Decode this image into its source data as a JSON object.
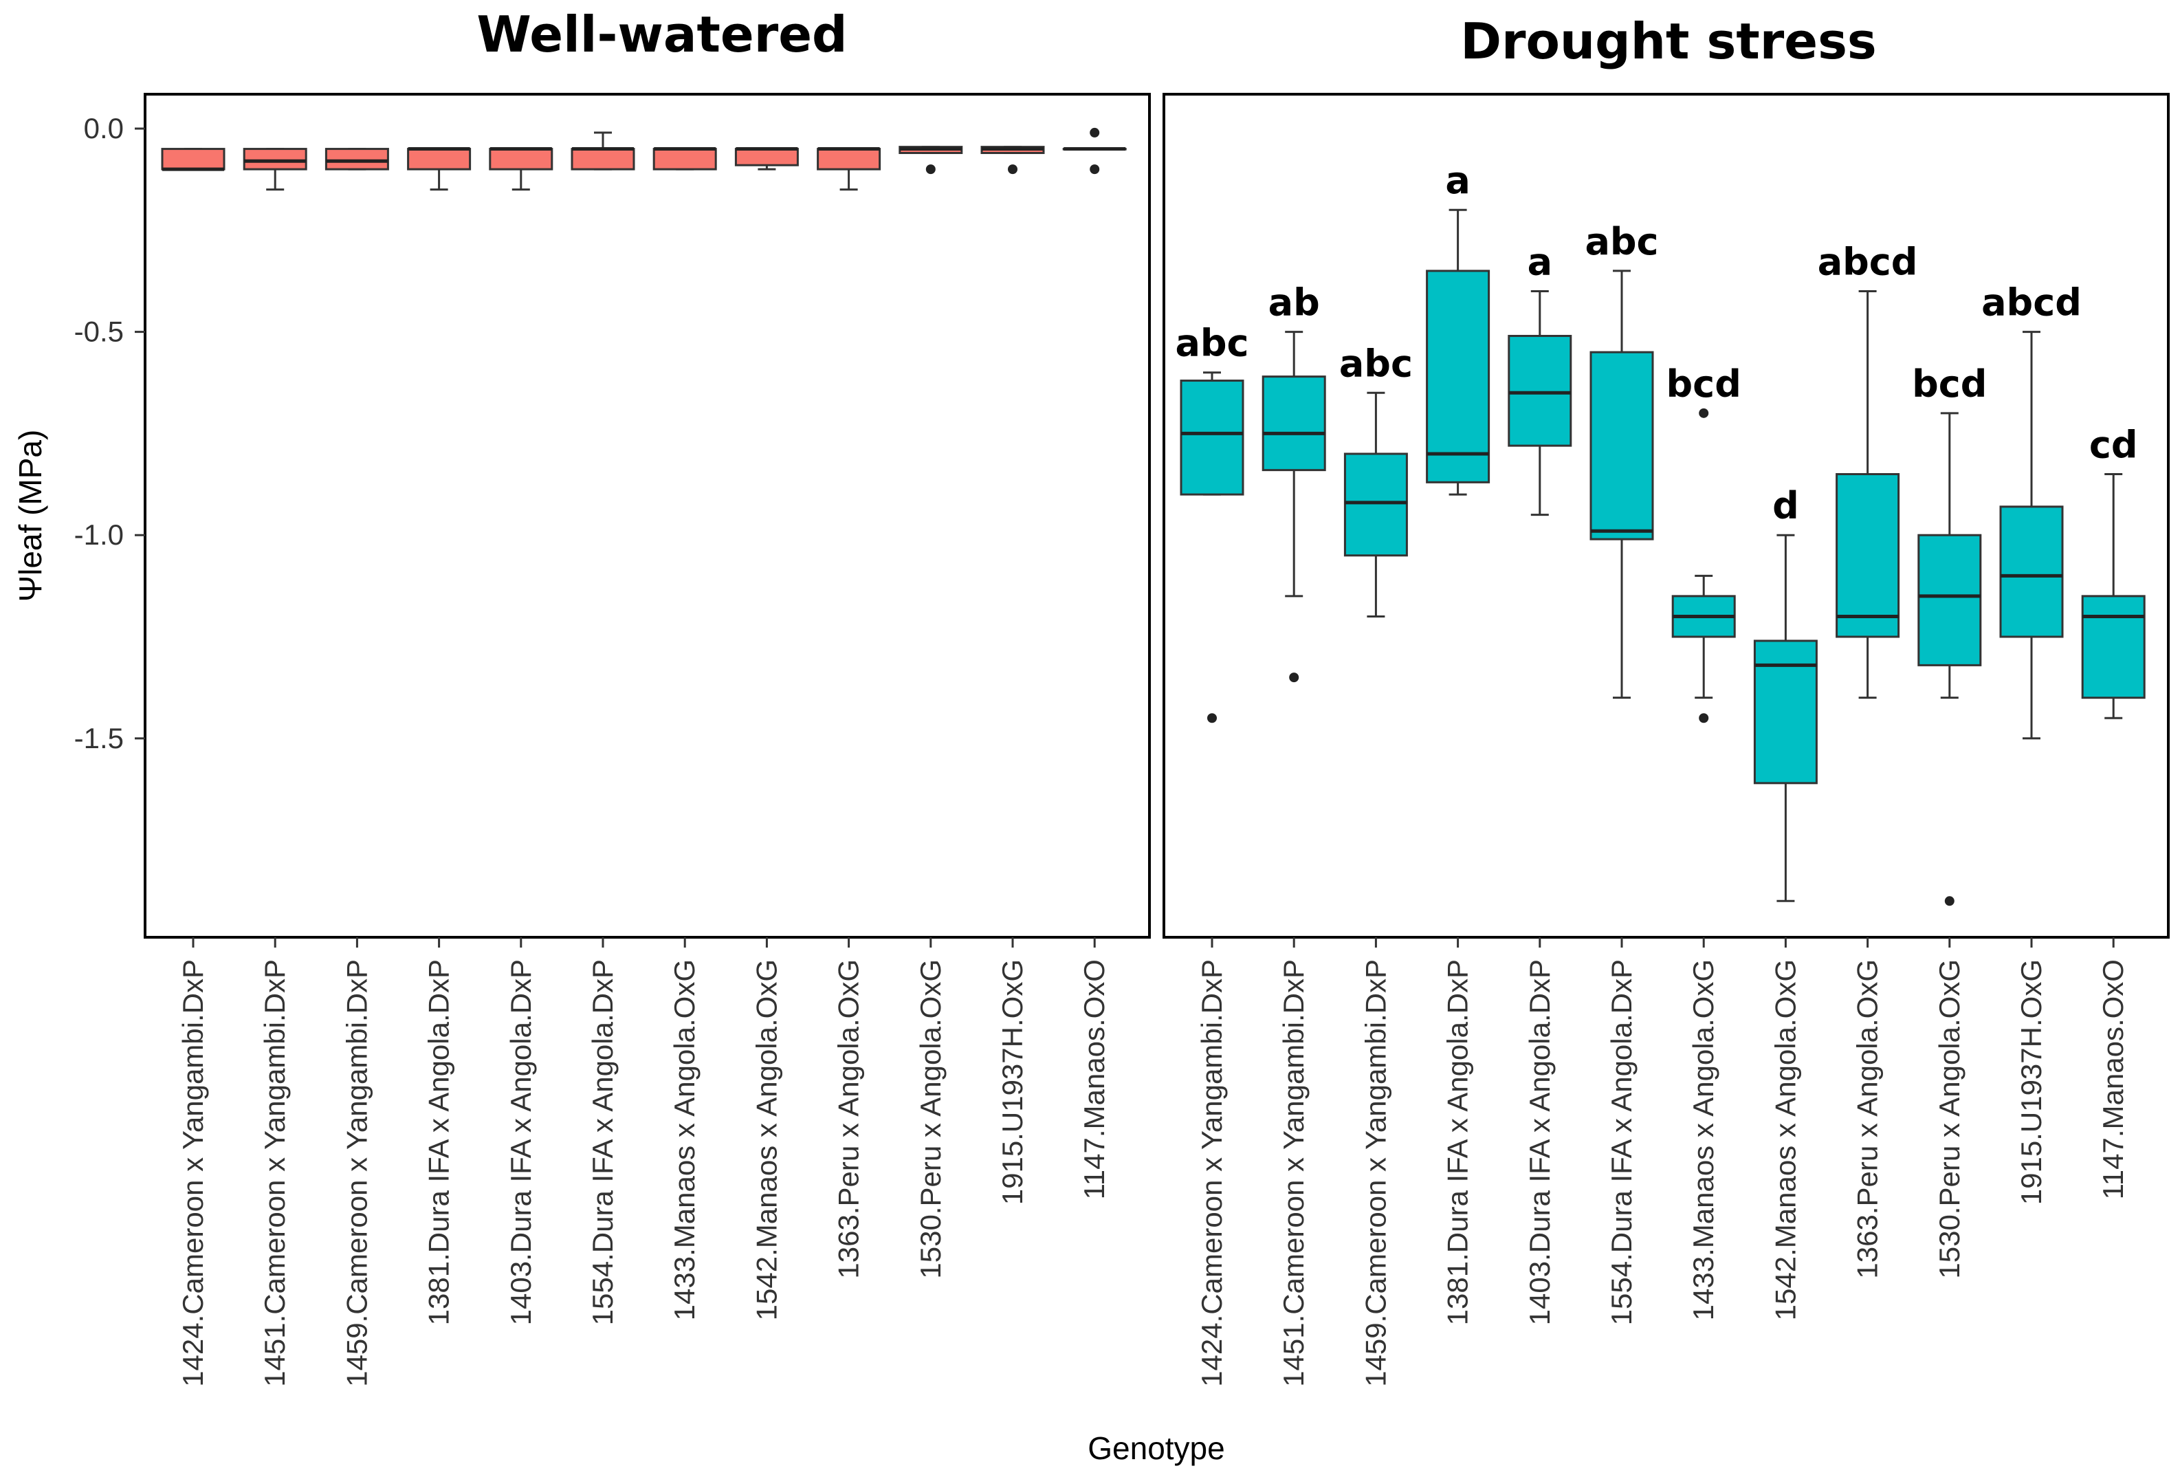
{
  "chart_data": {
    "type": "box",
    "xlabel": "Genotype",
    "ylabel": "Ψleaf (MPa)",
    "ylim": [
      -2.0,
      0.08
    ],
    "yticks": [
      0.0,
      -0.5,
      -1.0,
      -1.5
    ],
    "ytick_labels": [
      "0.0",
      "-0.5",
      "-1.0",
      "-1.5"
    ],
    "categories": [
      "1424.Cameroon x Yangambi.DxP",
      "1451.Cameroon x Yangambi.DxP",
      "1459.Cameroon x Yangambi.DxP",
      "1381.Dura IFA x Angola.DxP",
      "1403.Dura IFA x Angola.DxP",
      "1554.Dura IFA x Angola.DxP",
      "1433.Manaos x Angola.OxG",
      "1542.Manaos x Angola.OxG",
      "1363.Peru x Angola.OxG",
      "1530.Peru x Angola.OxG",
      "1915.U1937H.OxG",
      "1147.Manaos.OxO"
    ],
    "panels": [
      {
        "title": "Well-watered",
        "fill_color": "#f8766d",
        "boxes": [
          {
            "q1": -0.1,
            "median": -0.1,
            "q3": -0.05,
            "whisker_low": -0.1,
            "whisker_high": -0.05,
            "outliers": []
          },
          {
            "q1": -0.1,
            "median": -0.08,
            "q3": -0.05,
            "whisker_low": -0.15,
            "whisker_high": -0.05,
            "outliers": []
          },
          {
            "q1": -0.1,
            "median": -0.08,
            "q3": -0.05,
            "whisker_low": -0.1,
            "whisker_high": -0.05,
            "outliers": []
          },
          {
            "q1": -0.1,
            "median": -0.05,
            "q3": -0.05,
            "whisker_low": -0.15,
            "whisker_high": -0.05,
            "outliers": []
          },
          {
            "q1": -0.1,
            "median": -0.05,
            "q3": -0.05,
            "whisker_low": -0.15,
            "whisker_high": -0.05,
            "outliers": []
          },
          {
            "q1": -0.1,
            "median": -0.05,
            "q3": -0.05,
            "whisker_low": -0.1,
            "whisker_high": -0.01,
            "outliers": []
          },
          {
            "q1": -0.1,
            "median": -0.05,
            "q3": -0.05,
            "whisker_low": -0.1,
            "whisker_high": -0.05,
            "outliers": []
          },
          {
            "q1": -0.09,
            "median": -0.05,
            "q3": -0.05,
            "whisker_low": -0.1,
            "whisker_high": -0.05,
            "outliers": []
          },
          {
            "q1": -0.1,
            "median": -0.05,
            "q3": -0.05,
            "whisker_low": -0.15,
            "whisker_high": -0.05,
            "outliers": []
          },
          {
            "q1": -0.06,
            "median": -0.05,
            "q3": -0.045,
            "whisker_low": -0.06,
            "whisker_high": -0.045,
            "outliers": [
              -0.1
            ]
          },
          {
            "q1": -0.06,
            "median": -0.05,
            "q3": -0.045,
            "whisker_low": -0.06,
            "whisker_high": -0.045,
            "outliers": [
              -0.1
            ]
          },
          {
            "q1": -0.05,
            "median": -0.05,
            "q3": -0.05,
            "whisker_low": -0.05,
            "whisker_high": -0.05,
            "outliers": [
              -0.01,
              -0.1
            ]
          }
        ],
        "letters": []
      },
      {
        "title": "Drought stress",
        "fill_color": "#00bfc4",
        "boxes": [
          {
            "q1": -0.9,
            "median": -0.75,
            "q3": -0.62,
            "whisker_low": -0.9,
            "whisker_high": -0.6,
            "outliers": [
              -1.45
            ]
          },
          {
            "q1": -0.84,
            "median": -0.75,
            "q3": -0.61,
            "whisker_low": -1.15,
            "whisker_high": -0.5,
            "outliers": [
              -1.35
            ]
          },
          {
            "q1": -1.05,
            "median": -0.92,
            "q3": -0.8,
            "whisker_low": -1.2,
            "whisker_high": -0.65,
            "outliers": []
          },
          {
            "q1": -0.87,
            "median": -0.8,
            "q3": -0.35,
            "whisker_low": -0.9,
            "whisker_high": -0.2,
            "outliers": []
          },
          {
            "q1": -0.78,
            "median": -0.65,
            "q3": -0.51,
            "whisker_low": -0.95,
            "whisker_high": -0.4,
            "outliers": []
          },
          {
            "q1": -1.01,
            "median": -0.99,
            "q3": -0.55,
            "whisker_low": -1.4,
            "whisker_high": -0.35,
            "outliers": []
          },
          {
            "q1": -1.25,
            "median": -1.2,
            "q3": -1.15,
            "whisker_low": -1.4,
            "whisker_high": -1.1,
            "outliers": [
              -0.7,
              -1.45
            ]
          },
          {
            "q1": -1.61,
            "median": -1.32,
            "q3": -1.26,
            "whisker_low": -1.9,
            "whisker_high": -1.0,
            "outliers": []
          },
          {
            "q1": -1.25,
            "median": -1.2,
            "q3": -0.85,
            "whisker_low": -1.4,
            "whisker_high": -0.4,
            "outliers": []
          },
          {
            "q1": -1.32,
            "median": -1.15,
            "q3": -1.0,
            "whisker_low": -1.4,
            "whisker_high": -0.7,
            "outliers": [
              -1.9
            ]
          },
          {
            "q1": -1.25,
            "median": -1.1,
            "q3": -0.93,
            "whisker_low": -1.5,
            "whisker_high": -0.5,
            "outliers": []
          },
          {
            "q1": -1.4,
            "median": -1.2,
            "q3": -1.15,
            "whisker_low": -1.45,
            "whisker_high": -0.85,
            "outliers": []
          }
        ],
        "letters": [
          "abc",
          "ab",
          "abc",
          "a",
          "a",
          "abc",
          "bcd",
          "d",
          "abcd",
          "bcd",
          "abcd",
          "cd"
        ]
      }
    ]
  }
}
